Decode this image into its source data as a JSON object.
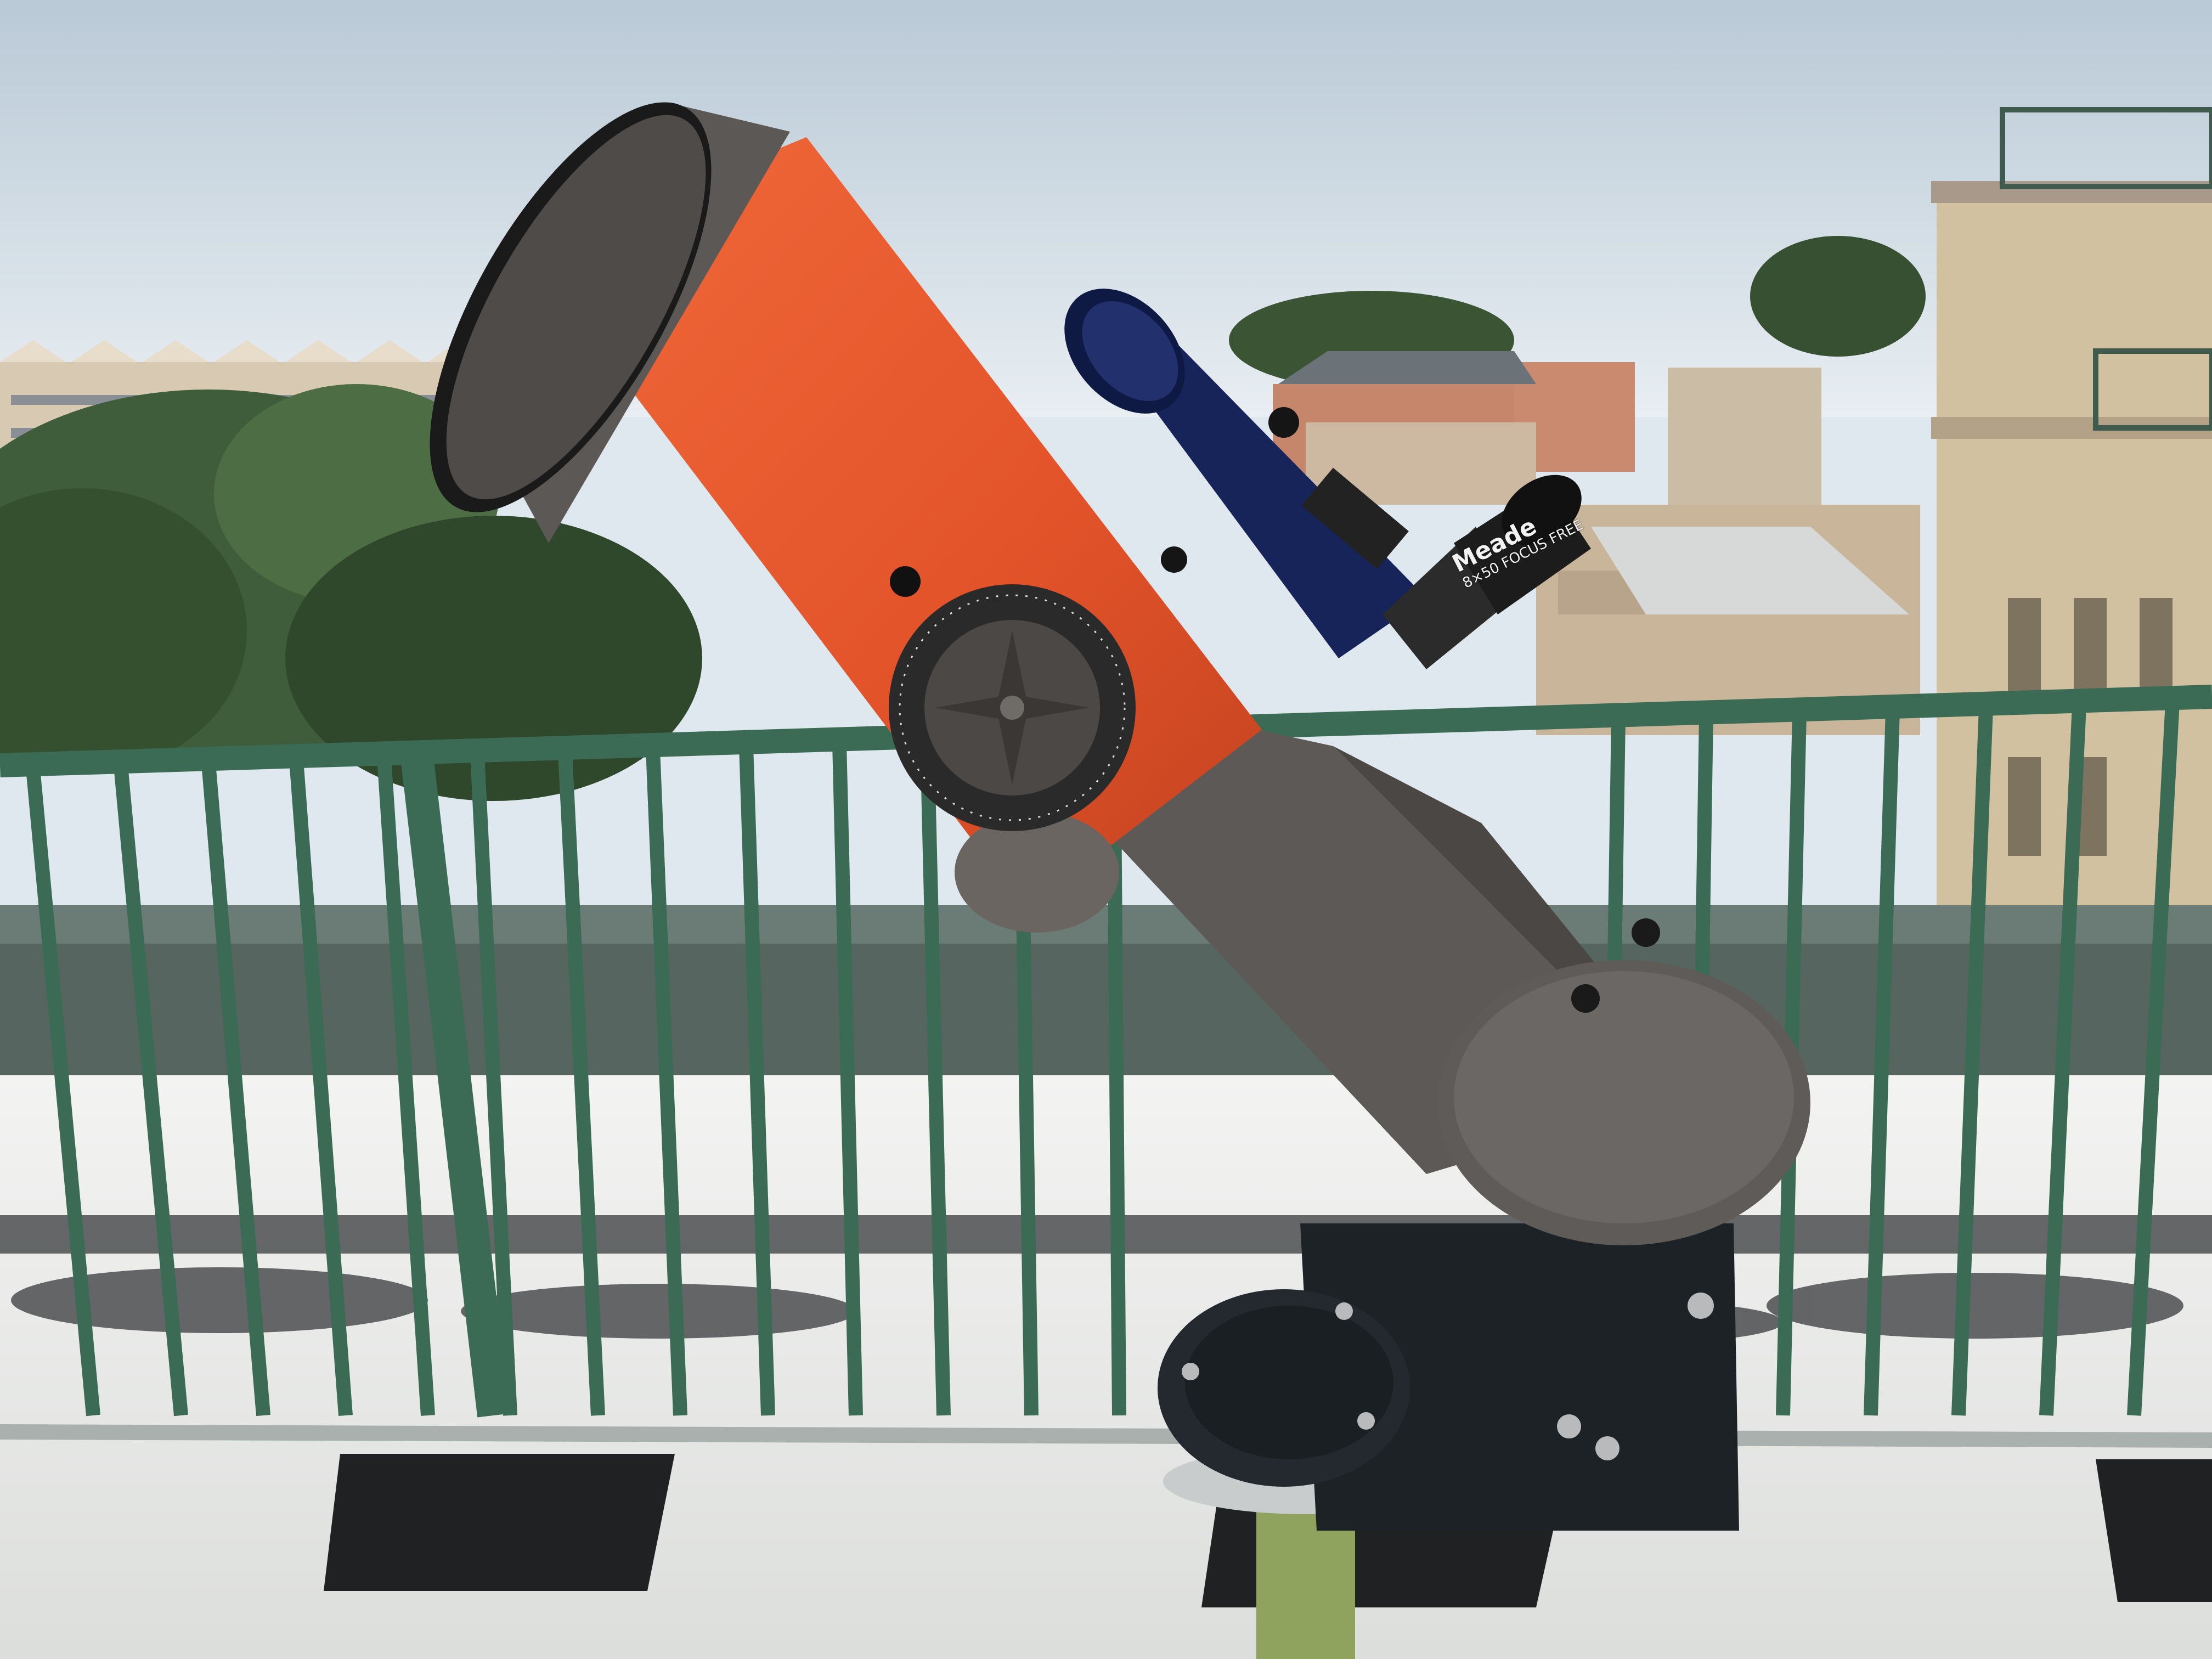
{
  "scene": {
    "finder": {
      "brand": "Meade",
      "spec": "8×50 FOCUS FREE"
    },
    "colors": {
      "sky_top": "#c7d4de",
      "sky_bottom": "#e6edf2",
      "tube_orange": "#e4562a",
      "mount_gray": "#5c5956",
      "railing_green": "#3c6b55",
      "roof": "#e9eae9",
      "finder_blue": "#16245a"
    }
  }
}
